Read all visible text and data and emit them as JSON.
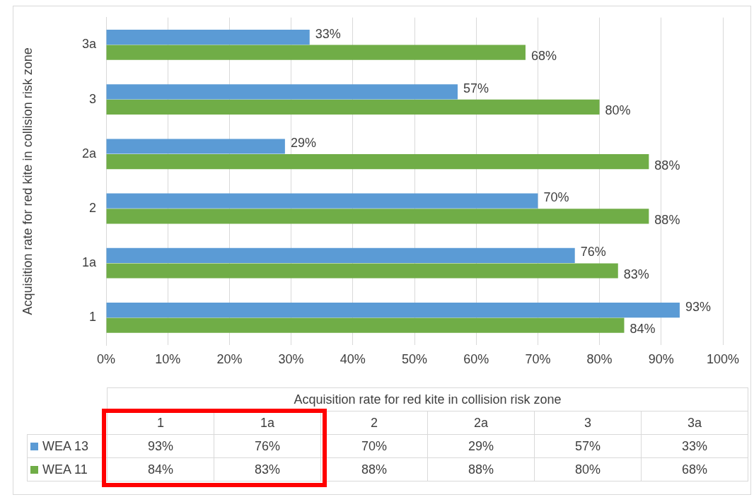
{
  "chart_data": {
    "type": "bar",
    "orientation": "horizontal",
    "ylabel": "Acquisition rate for red kite in collision risk zone",
    "xlabel": "Acquisition rate for red kite in collision risk zone",
    "categories": [
      "3a",
      "3",
      "2a",
      "2",
      "1a",
      "1"
    ],
    "series": [
      {
        "name": "WEA 13",
        "color": "#5b9bd5",
        "values": [
          33,
          57,
          29,
          70,
          76,
          93
        ],
        "value_labels": [
          "33%",
          "57%",
          "29%",
          "70%",
          "76%",
          "93%"
        ]
      },
      {
        "name": "WEA 11",
        "color": "#70ad47",
        "values": [
          68,
          80,
          88,
          88,
          83,
          84
        ],
        "value_labels": [
          "68%",
          "80%",
          "88%",
          "88%",
          "83%",
          "84%"
        ]
      }
    ],
    "xlim": [
      0,
      100
    ],
    "xticks": [
      {
        "value": 0,
        "label": "0%"
      },
      {
        "value": 10,
        "label": "10%"
      },
      {
        "value": 20,
        "label": "20%"
      },
      {
        "value": 30,
        "label": "30%"
      },
      {
        "value": 40,
        "label": "40%"
      },
      {
        "value": 50,
        "label": "50%"
      },
      {
        "value": 60,
        "label": "60%"
      },
      {
        "value": 70,
        "label": "70%"
      },
      {
        "value": 80,
        "label": "80%"
      },
      {
        "value": 90,
        "label": "90%"
      },
      {
        "value": 100,
        "label": "100%"
      }
    ],
    "grid": "x",
    "legend": "bottom"
  }
}
